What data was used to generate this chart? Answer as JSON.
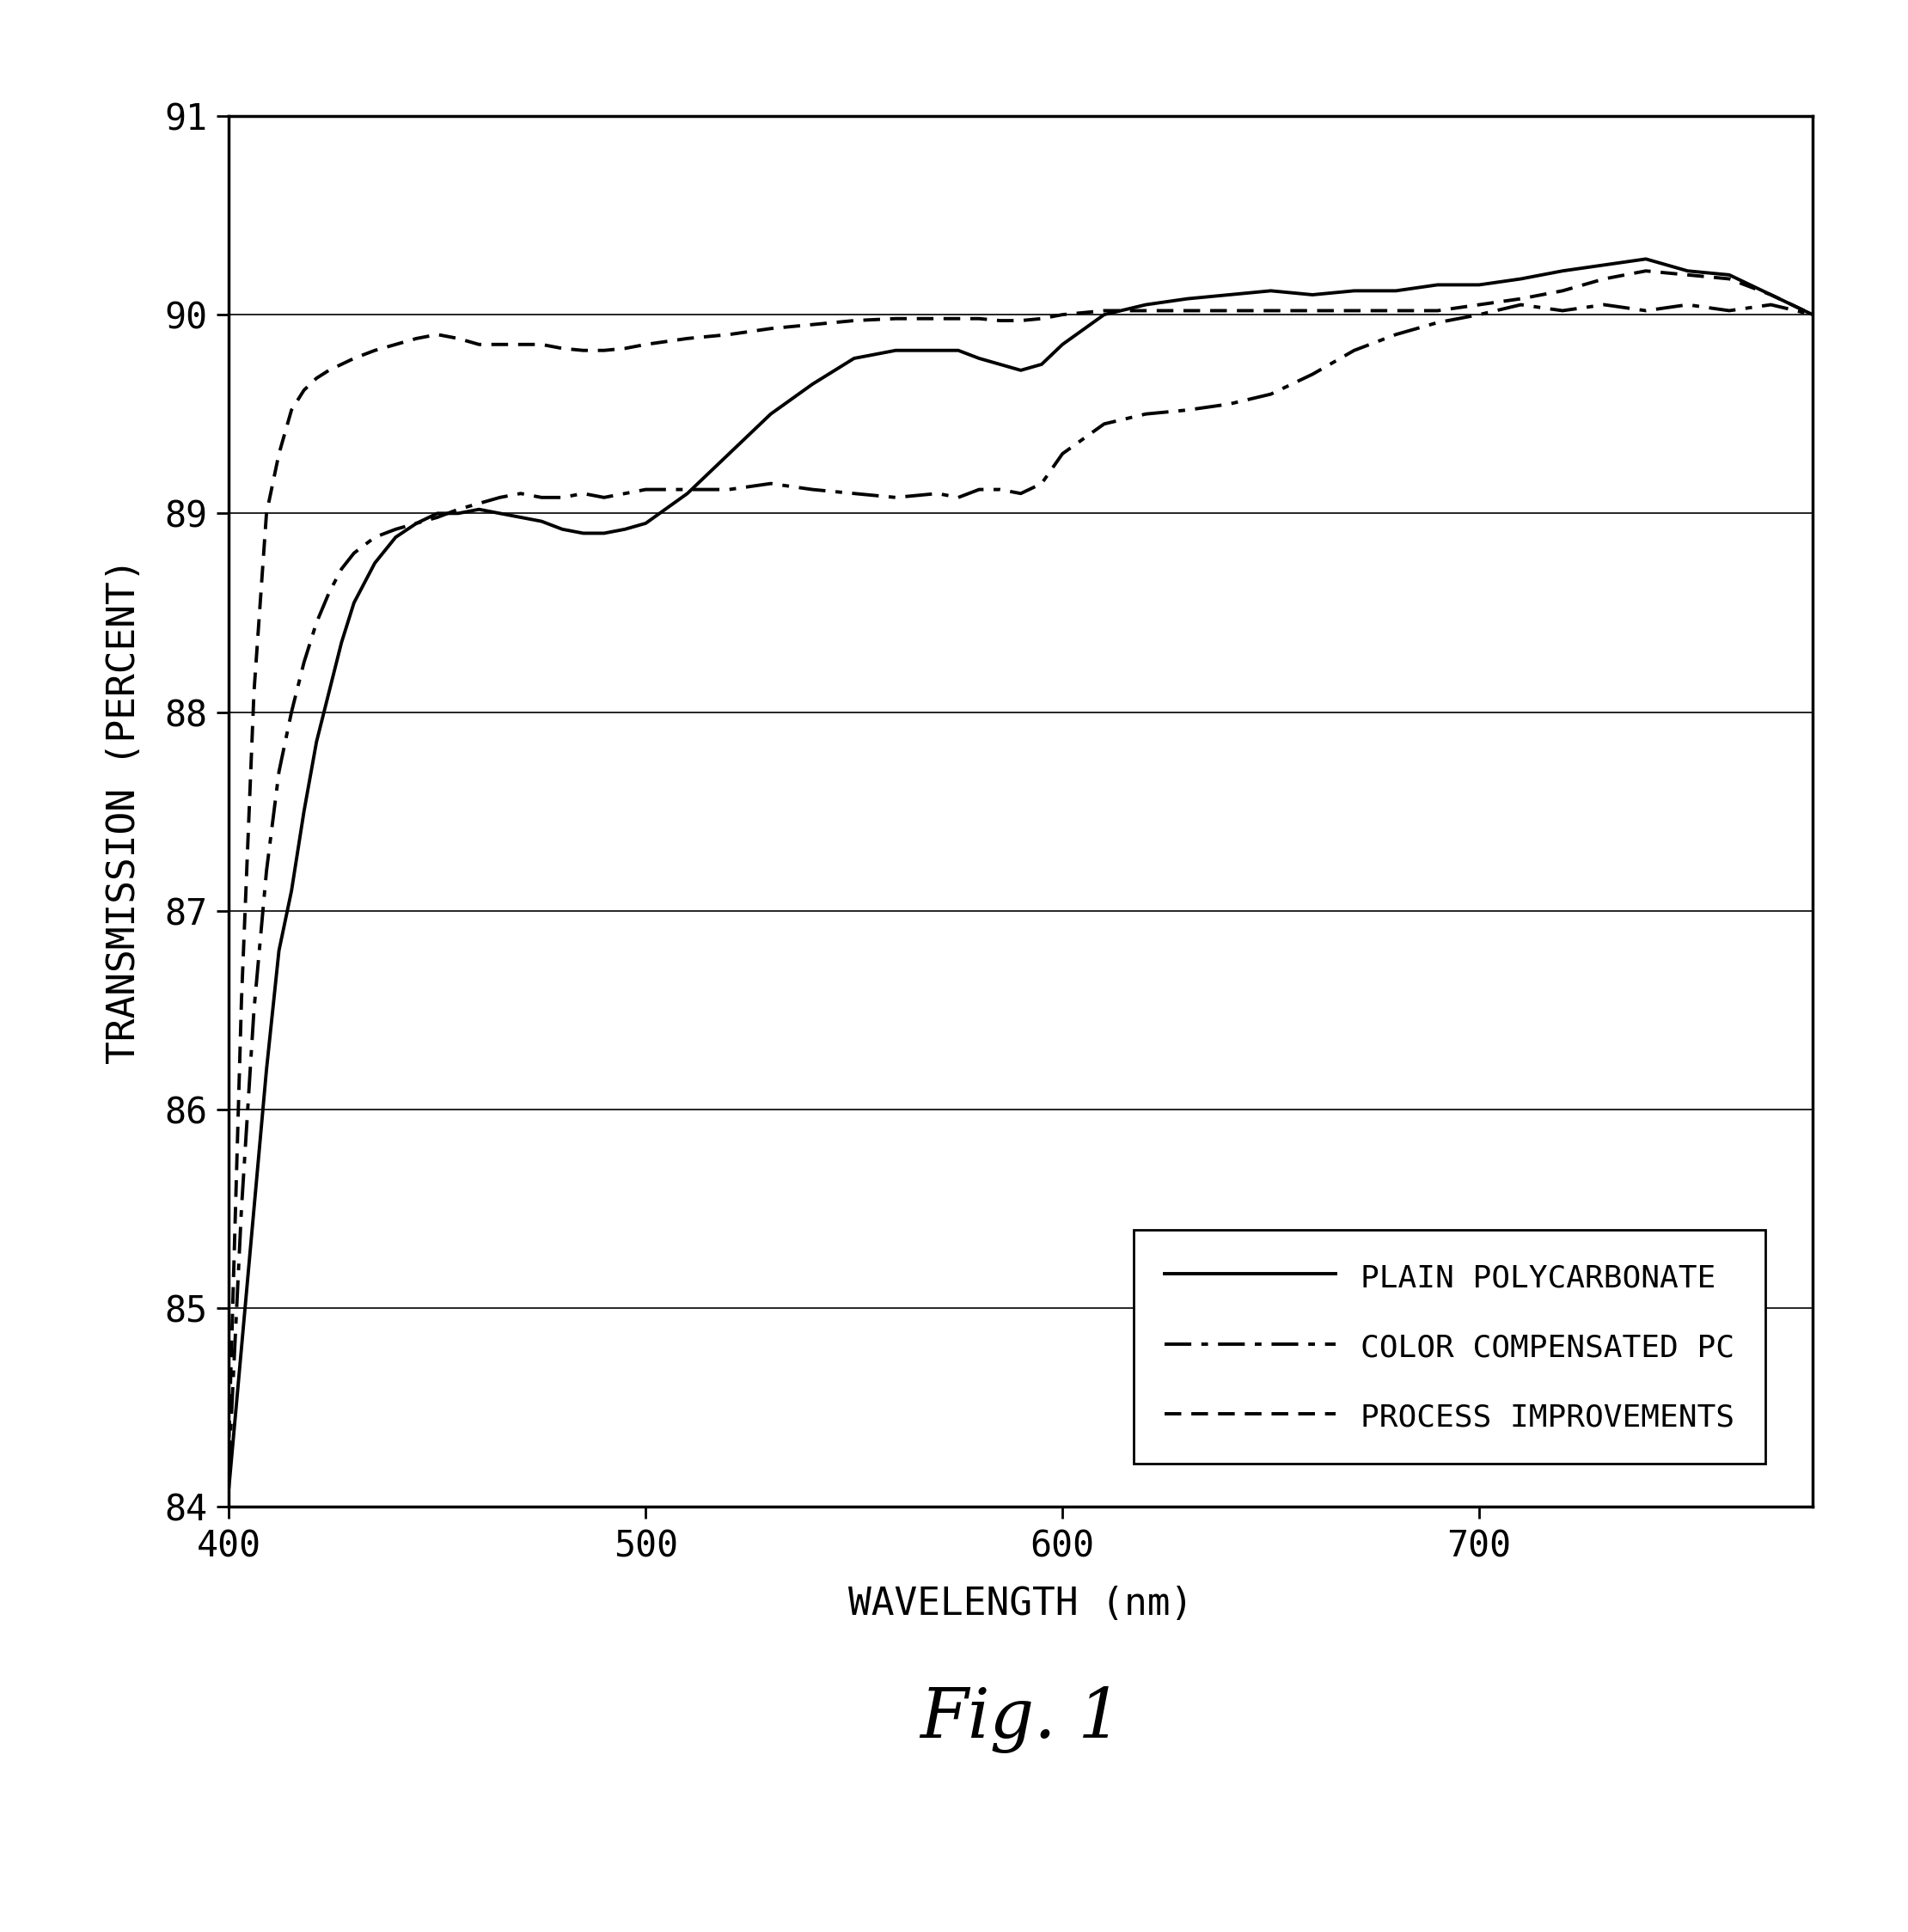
{
  "title": "Fig. 1",
  "xlabel": "WAVELENGTH (nm)",
  "ylabel": "TRANSMISSION (PERCENT)",
  "xlim": [
    400,
    780
  ],
  "ylim": [
    84,
    91
  ],
  "yticks": [
    84,
    85,
    86,
    87,
    88,
    89,
    90,
    91
  ],
  "xticks": [
    400,
    500,
    600,
    700
  ],
  "background_color": "#ffffff",
  "line_color": "#000000",
  "legend_labels": [
    "PLAIN POLYCARBONATE",
    "COLOR COMPENSATED PC",
    "PROCESS IMPROVEMENTS"
  ],
  "plain_pc_x": [
    400,
    403,
    406,
    409,
    412,
    415,
    418,
    421,
    424,
    427,
    430,
    435,
    440,
    445,
    450,
    455,
    460,
    465,
    470,
    475,
    480,
    485,
    490,
    495,
    500,
    510,
    520,
    530,
    540,
    550,
    560,
    570,
    575,
    580,
    585,
    590,
    595,
    600,
    610,
    620,
    630,
    640,
    650,
    660,
    670,
    680,
    690,
    700,
    710,
    720,
    730,
    740,
    750,
    760,
    770,
    780
  ],
  "plain_pc_y": [
    84.1,
    84.8,
    85.5,
    86.2,
    86.8,
    87.1,
    87.5,
    87.85,
    88.1,
    88.35,
    88.55,
    88.75,
    88.88,
    88.95,
    89.0,
    89.0,
    89.02,
    89.0,
    88.98,
    88.96,
    88.92,
    88.9,
    88.9,
    88.92,
    88.95,
    89.1,
    89.3,
    89.5,
    89.65,
    89.78,
    89.82,
    89.82,
    89.82,
    89.78,
    89.75,
    89.72,
    89.75,
    89.85,
    90.0,
    90.05,
    90.08,
    90.1,
    90.12,
    90.1,
    90.12,
    90.12,
    90.15,
    90.15,
    90.18,
    90.22,
    90.25,
    90.28,
    90.22,
    90.2,
    90.1,
    90.0
  ],
  "color_comp_x": [
    400,
    403,
    406,
    409,
    412,
    415,
    418,
    421,
    424,
    427,
    430,
    435,
    440,
    445,
    450,
    455,
    460,
    465,
    470,
    475,
    480,
    485,
    490,
    495,
    500,
    510,
    520,
    530,
    540,
    550,
    560,
    570,
    575,
    580,
    585,
    590,
    595,
    600,
    610,
    620,
    630,
    640,
    650,
    660,
    670,
    680,
    690,
    700,
    710,
    720,
    730,
    740,
    750,
    760,
    770,
    780
  ],
  "color_comp_y": [
    84.2,
    85.5,
    86.5,
    87.2,
    87.7,
    88.0,
    88.25,
    88.45,
    88.6,
    88.72,
    88.8,
    88.88,
    88.92,
    88.95,
    88.98,
    89.02,
    89.05,
    89.08,
    89.1,
    89.08,
    89.08,
    89.1,
    89.08,
    89.1,
    89.12,
    89.12,
    89.12,
    89.15,
    89.12,
    89.1,
    89.08,
    89.1,
    89.08,
    89.12,
    89.12,
    89.1,
    89.15,
    89.3,
    89.45,
    89.5,
    89.52,
    89.55,
    89.6,
    89.7,
    89.82,
    89.9,
    89.96,
    90.0,
    90.05,
    90.02,
    90.05,
    90.02,
    90.05,
    90.02,
    90.05,
    90.0
  ],
  "process_x": [
    400,
    403,
    406,
    409,
    412,
    415,
    418,
    421,
    424,
    427,
    430,
    435,
    440,
    445,
    450,
    455,
    460,
    465,
    470,
    475,
    480,
    485,
    490,
    495,
    500,
    510,
    520,
    530,
    540,
    550,
    560,
    570,
    575,
    580,
    585,
    590,
    595,
    600,
    610,
    620,
    630,
    640,
    650,
    660,
    670,
    680,
    690,
    700,
    710,
    720,
    730,
    740,
    750,
    760,
    770,
    780
  ],
  "process_y": [
    84.35,
    86.55,
    88.1,
    89.0,
    89.3,
    89.52,
    89.62,
    89.68,
    89.72,
    89.75,
    89.78,
    89.82,
    89.85,
    89.88,
    89.9,
    89.88,
    89.85,
    89.85,
    89.85,
    89.85,
    89.83,
    89.82,
    89.82,
    89.83,
    89.85,
    89.88,
    89.9,
    89.93,
    89.95,
    89.97,
    89.98,
    89.98,
    89.98,
    89.98,
    89.97,
    89.97,
    89.98,
    90.0,
    90.02,
    90.02,
    90.02,
    90.02,
    90.02,
    90.02,
    90.02,
    90.02,
    90.02,
    90.05,
    90.08,
    90.12,
    90.18,
    90.22,
    90.2,
    90.18,
    90.1,
    90.0
  ]
}
